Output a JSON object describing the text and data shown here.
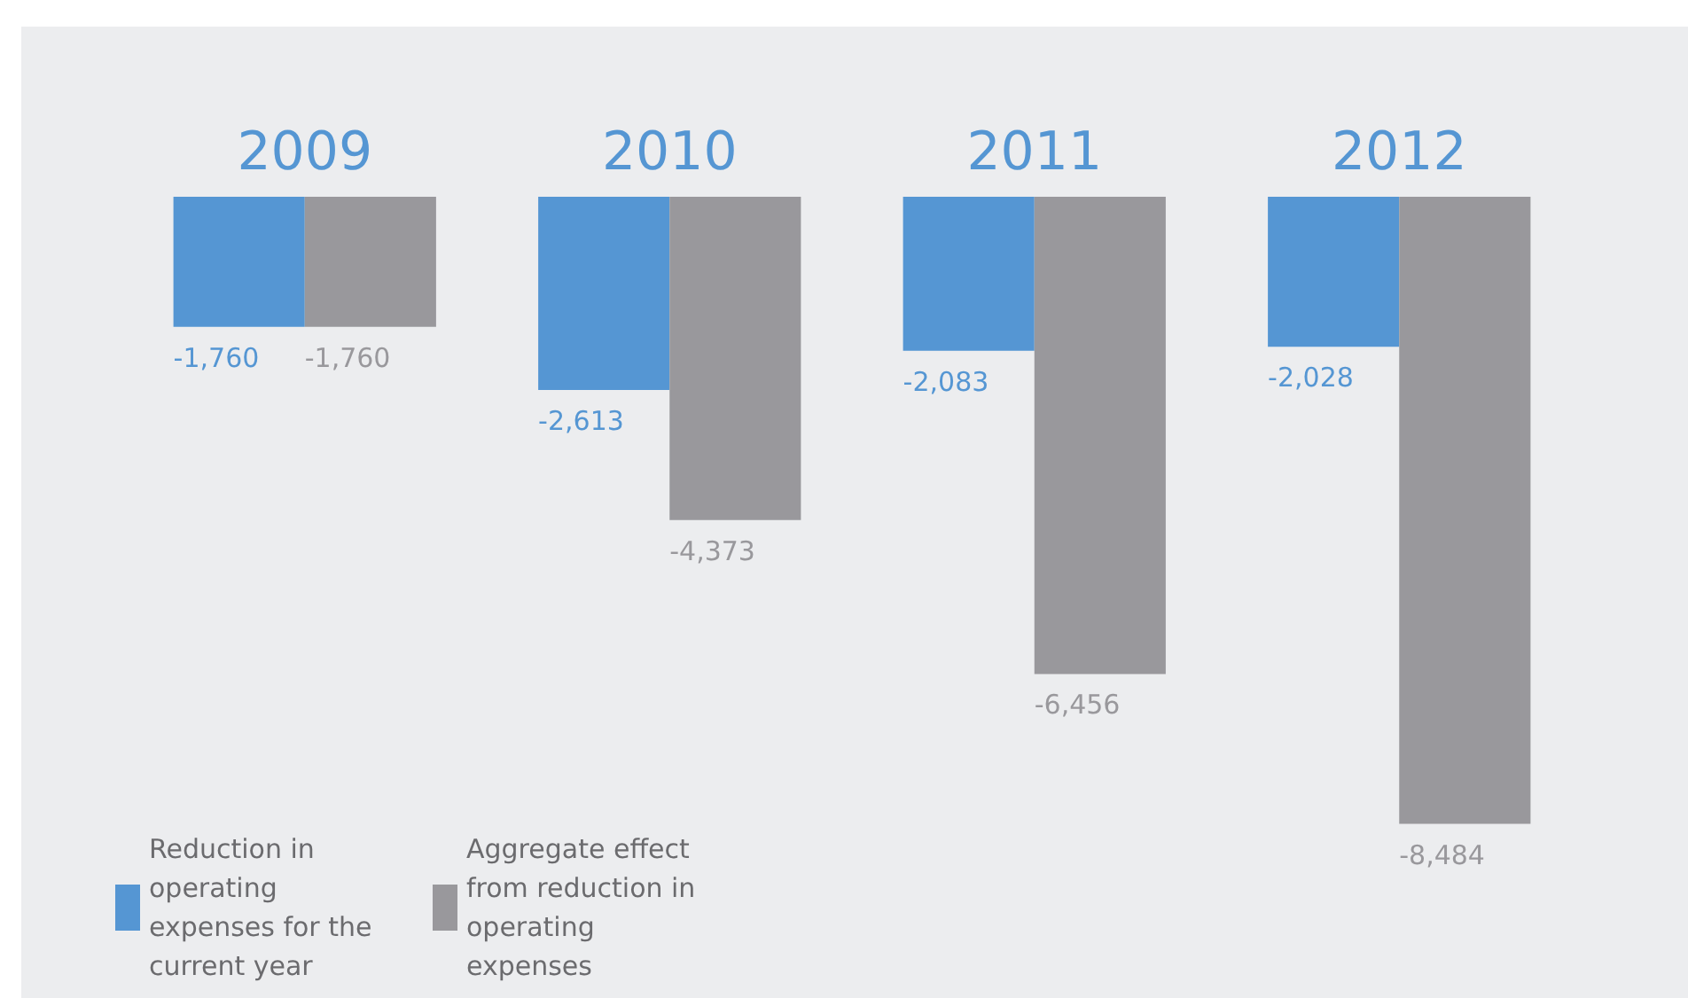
{
  "chart_data": {
    "type": "bar",
    "categories": [
      "2009",
      "2010",
      "2011",
      "2012"
    ],
    "series": [
      {
        "name": "Reduction in operating expenses for the current year",
        "color": "#5596d3",
        "values": [
          -1760,
          -2613,
          -2083,
          -2028
        ],
        "value_labels": [
          "-1,760",
          "-2,613",
          "-2,083",
          "-2,028"
        ]
      },
      {
        "name": "Aggregate effect from reduction in operating expenses",
        "color": "#99989c",
        "values": [
          -1760,
          -4373,
          -6456,
          -8484
        ],
        "value_labels": [
          "-1,760",
          "-4,373",
          "-6,456",
          "-8,484"
        ]
      }
    ],
    "tick_labels": "x",
    "legend": "bottom left",
    "grid": false
  }
}
